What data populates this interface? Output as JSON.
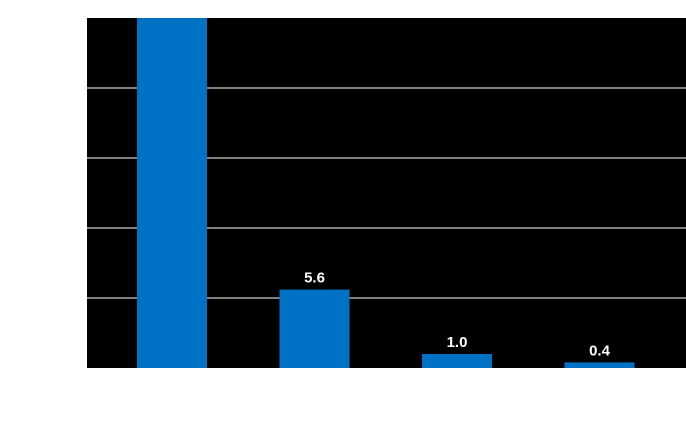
{
  "chart_data": {
    "type": "bar",
    "title": "",
    "xlabel": "",
    "ylabel": "",
    "categories": [
      "",
      "",
      "",
      ""
    ],
    "values": [
      25,
      5.6,
      1.0,
      0.4
    ],
    "data_labels": [
      "",
      "5.6",
      "1.0",
      "0.4"
    ],
    "ylim": [
      0,
      25
    ],
    "y_grid_step": 5,
    "grid": true,
    "legend": "none",
    "colors": {
      "plot_background": "#000000",
      "bar": "#0072c6",
      "grid": "#ffffff",
      "label": "#ffffff"
    }
  }
}
